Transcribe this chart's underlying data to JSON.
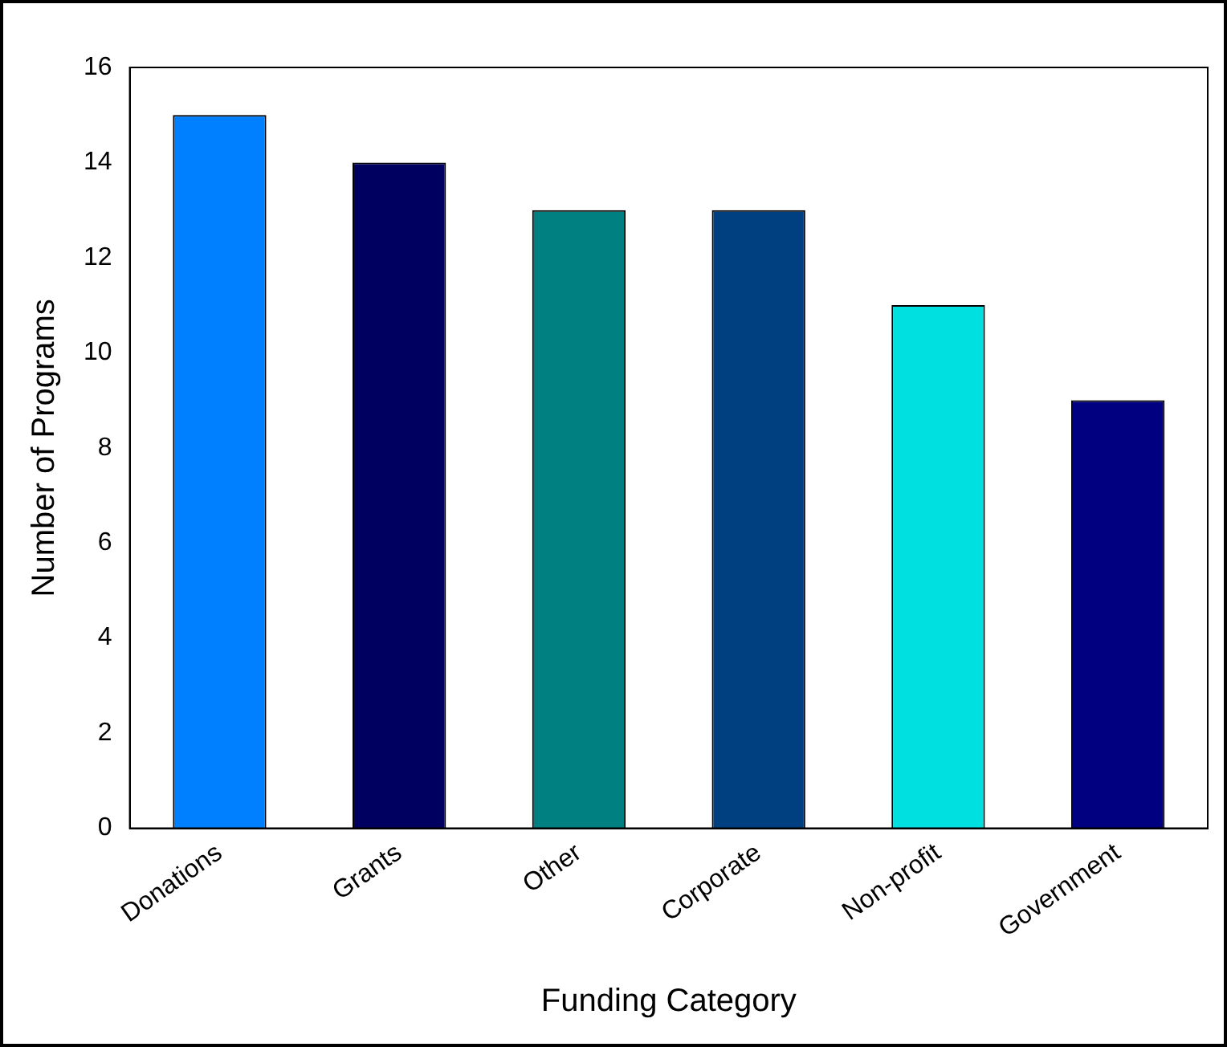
{
  "chart_data": {
    "type": "bar",
    "xlabel": "Funding Category",
    "ylabel": "Number of Programs",
    "categories": [
      "Donations",
      "Grants",
      "Other",
      "Corporate",
      "Non-profit",
      "Government"
    ],
    "values": [
      15,
      14,
      13,
      13,
      11,
      9
    ],
    "colors": [
      "#0080ff",
      "#000060",
      "#008080",
      "#004080",
      "#00e0e0",
      "#000080"
    ],
    "ylim": [
      0,
      16
    ],
    "yticks": [
      0,
      2,
      4,
      6,
      8,
      10,
      12,
      14,
      16
    ],
    "grid": false,
    "legend": false
  }
}
